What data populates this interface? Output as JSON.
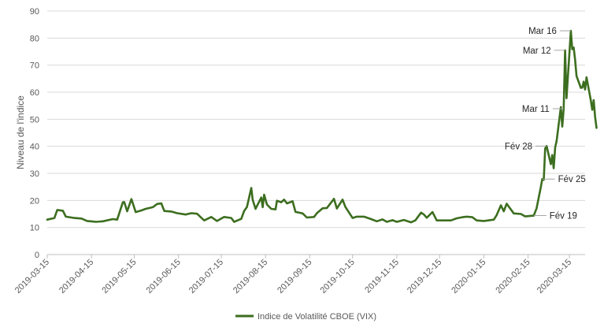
{
  "chart_data": {
    "type": "line",
    "ylabel": "Niveau de l'indice",
    "xlabel": "",
    "ylim": [
      0,
      90
    ],
    "yticks": [
      0,
      10,
      20,
      30,
      40,
      50,
      60,
      70,
      80,
      90
    ],
    "xlim": [
      "2019-03-15",
      "2020-03-26"
    ],
    "xticks": [
      "2019-03-15",
      "2019-04-15",
      "2019-05-15",
      "2019-06-15",
      "2019-07-15",
      "2019-08-15",
      "2019-09-15",
      "2019-10-15",
      "2019-11-15",
      "2019-12-15",
      "2020-01-15",
      "2020-02-15",
      "2020-03-15"
    ],
    "grid": true,
    "legend_position": "bottom",
    "series_color": "#3c6e1f",
    "series": [
      {
        "name": "Indice de Volatilité CBOE (VIX)",
        "points": [
          [
            "2019-03-15",
            12.9
          ],
          [
            "2019-03-20",
            13.5
          ],
          [
            "2019-03-22",
            16.5
          ],
          [
            "2019-03-26",
            16.2
          ],
          [
            "2019-03-28",
            14.0
          ],
          [
            "2019-04-03",
            13.5
          ],
          [
            "2019-04-08",
            13.3
          ],
          [
            "2019-04-12",
            12.4
          ],
          [
            "2019-04-16",
            12.2
          ],
          [
            "2019-04-18",
            12.1
          ],
          [
            "2019-04-23",
            12.3
          ],
          [
            "2019-04-30",
            13.1
          ],
          [
            "2019-05-03",
            12.9
          ],
          [
            "2019-05-07",
            19.3
          ],
          [
            "2019-05-08",
            19.4
          ],
          [
            "2019-05-10",
            16.0
          ],
          [
            "2019-05-13",
            20.5
          ],
          [
            "2019-05-16",
            15.7
          ],
          [
            "2019-05-20",
            16.3
          ],
          [
            "2019-05-23",
            16.9
          ],
          [
            "2019-05-28",
            17.5
          ],
          [
            "2019-05-31",
            18.7
          ],
          [
            "2019-06-03",
            18.9
          ],
          [
            "2019-06-05",
            16.1
          ],
          [
            "2019-06-10",
            15.9
          ],
          [
            "2019-06-14",
            15.3
          ],
          [
            "2019-06-20",
            14.8
          ],
          [
            "2019-06-24",
            15.3
          ],
          [
            "2019-06-28",
            15.1
          ],
          [
            "2019-07-03",
            12.6
          ],
          [
            "2019-07-08",
            13.9
          ],
          [
            "2019-07-12",
            12.4
          ],
          [
            "2019-07-17",
            13.9
          ],
          [
            "2019-07-22",
            13.5
          ],
          [
            "2019-07-24",
            12.1
          ],
          [
            "2019-07-29",
            13.2
          ],
          [
            "2019-07-31",
            16.1
          ],
          [
            "2019-08-02",
            17.6
          ],
          [
            "2019-08-05",
            24.6
          ],
          [
            "2019-08-06",
            20.2
          ],
          [
            "2019-08-08",
            16.9
          ],
          [
            "2019-08-12",
            21.1
          ],
          [
            "2019-08-13",
            17.5
          ],
          [
            "2019-08-14",
            22.1
          ],
          [
            "2019-08-16",
            18.5
          ],
          [
            "2019-08-19",
            16.9
          ],
          [
            "2019-08-22",
            16.7
          ],
          [
            "2019-08-23",
            19.9
          ],
          [
            "2019-08-26",
            19.3
          ],
          [
            "2019-08-28",
            20.3
          ],
          [
            "2019-08-30",
            18.9
          ],
          [
            "2019-09-03",
            19.7
          ],
          [
            "2019-09-05",
            15.8
          ],
          [
            "2019-09-10",
            15.2
          ],
          [
            "2019-09-13",
            13.7
          ],
          [
            "2019-09-18",
            13.9
          ],
          [
            "2019-09-20",
            15.3
          ],
          [
            "2019-09-24",
            17.1
          ],
          [
            "2019-09-27",
            17.2
          ],
          [
            "2019-10-02",
            20.6
          ],
          [
            "2019-10-04",
            17.0
          ],
          [
            "2019-10-08",
            20.3
          ],
          [
            "2019-10-10",
            17.6
          ],
          [
            "2019-10-15",
            13.5
          ],
          [
            "2019-10-18",
            14.0
          ],
          [
            "2019-10-23",
            14.0
          ],
          [
            "2019-10-28",
            13.1
          ],
          [
            "2019-11-01",
            12.3
          ],
          [
            "2019-11-05",
            13.0
          ],
          [
            "2019-11-08",
            12.1
          ],
          [
            "2019-11-12",
            12.7
          ],
          [
            "2019-11-15",
            12.1
          ],
          [
            "2019-11-20",
            12.8
          ],
          [
            "2019-11-25",
            11.9
          ],
          [
            "2019-11-28",
            12.6
          ],
          [
            "2019-12-02",
            15.5
          ],
          [
            "2019-12-04",
            14.8
          ],
          [
            "2019-12-06",
            13.6
          ],
          [
            "2019-12-10",
            15.7
          ],
          [
            "2019-12-13",
            12.6
          ],
          [
            "2019-12-18",
            12.6
          ],
          [
            "2019-12-23",
            12.6
          ],
          [
            "2019-12-27",
            13.4
          ],
          [
            "2019-12-31",
            13.8
          ],
          [
            "2020-01-03",
            14.0
          ],
          [
            "2020-01-07",
            13.8
          ],
          [
            "2020-01-10",
            12.6
          ],
          [
            "2020-01-15",
            12.4
          ],
          [
            "2020-01-22",
            12.9
          ],
          [
            "2020-01-24",
            14.6
          ],
          [
            "2020-01-27",
            18.2
          ],
          [
            "2020-01-29",
            16.0
          ],
          [
            "2020-01-31",
            18.8
          ],
          [
            "2020-02-05",
            15.2
          ],
          [
            "2020-02-10",
            15.0
          ],
          [
            "2020-02-13",
            14.1
          ],
          [
            "2020-02-19",
            14.4
          ],
          [
            "2020-02-21",
            17.1
          ],
          [
            "2020-02-24",
            25.0
          ],
          [
            "2020-02-25",
            27.9
          ],
          [
            "2020-02-26",
            27.6
          ],
          [
            "2020-02-27",
            39.2
          ],
          [
            "2020-02-28",
            40.1
          ],
          [
            "2020-03-02",
            33.4
          ],
          [
            "2020-03-03",
            36.8
          ],
          [
            "2020-03-04",
            31.9
          ],
          [
            "2020-03-05",
            39.6
          ],
          [
            "2020-03-06",
            41.9
          ],
          [
            "2020-03-09",
            54.5
          ],
          [
            "2020-03-10",
            47.3
          ],
          [
            "2020-03-11",
            53.9
          ],
          [
            "2020-03-12",
            75.5
          ],
          [
            "2020-03-13",
            57.8
          ],
          [
            "2020-03-16",
            82.7
          ],
          [
            "2020-03-17",
            75.9
          ],
          [
            "2020-03-18",
            76.5
          ],
          [
            "2020-03-19",
            72.0
          ],
          [
            "2020-03-20",
            66.0
          ],
          [
            "2020-03-23",
            61.6
          ],
          [
            "2020-03-24",
            61.7
          ],
          [
            "2020-03-25",
            63.9
          ],
          [
            "2020-03-26",
            61.0
          ],
          [
            "2020-03-27",
            65.5
          ],
          [
            "2020-03-30",
            57.1
          ],
          [
            "2020-03-31",
            53.5
          ],
          [
            "2020-04-01",
            57.1
          ],
          [
            "2020-04-02",
            50.9
          ],
          [
            "2020-04-03",
            46.8
          ]
        ]
      }
    ],
    "annotations": [
      {
        "label": "Fév 19",
        "date": "2020-02-19",
        "value": 14.4
      },
      {
        "label": "Fév 25",
        "date": "2020-02-25",
        "value": 27.9
      },
      {
        "label": "Fév 28",
        "date": "2020-02-28",
        "value": 40.1
      },
      {
        "label": "Mar 11",
        "date": "2020-03-11",
        "value": 53.9
      },
      {
        "label": "Mar 12",
        "date": "2020-03-12",
        "value": 75.5
      },
      {
        "label": "Mar 16",
        "date": "2020-03-16",
        "value": 82.7
      }
    ]
  }
}
